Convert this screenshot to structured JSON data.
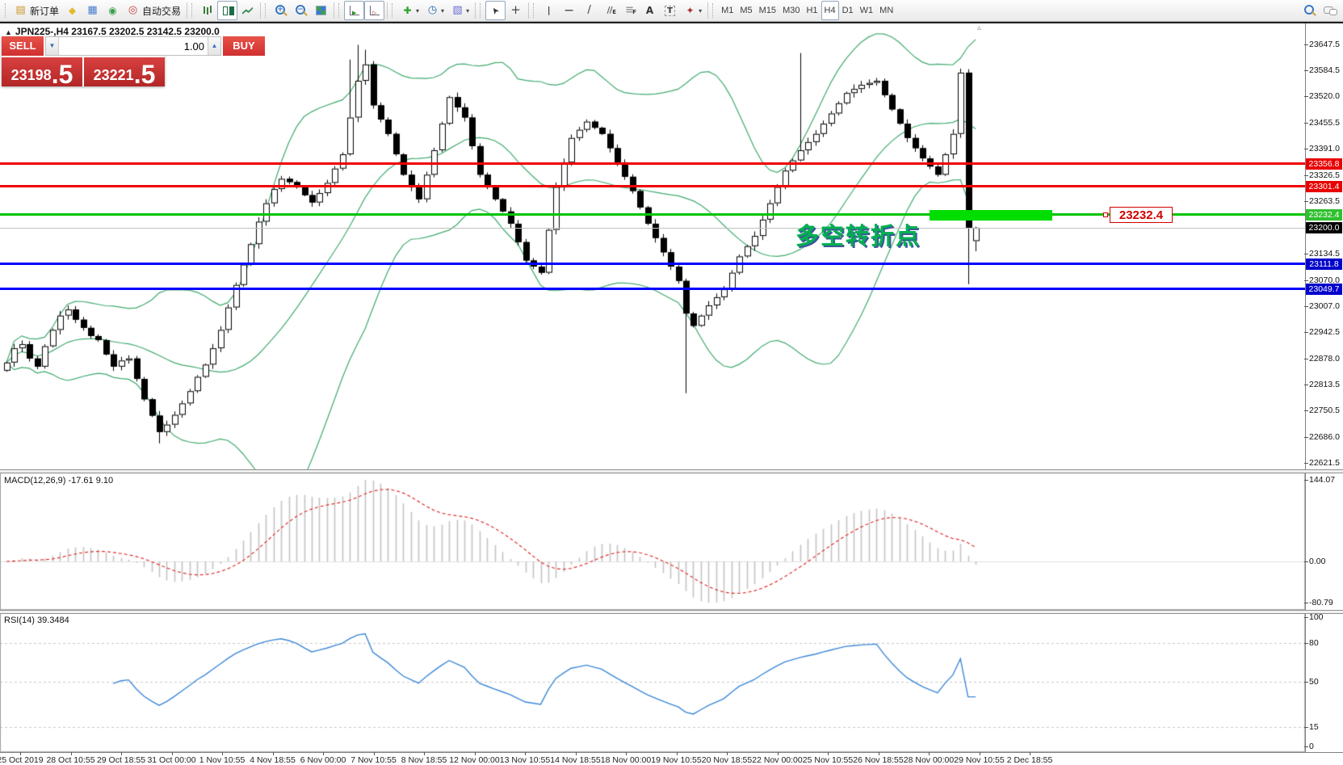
{
  "toolbar": {
    "groups": [
      {
        "items": [
          {
            "name": "new-order-button",
            "icon": "neworder",
            "label": "新订单"
          },
          {
            "name": "eraser-button",
            "icon": "eraser"
          },
          {
            "name": "charts-button",
            "icon": "charts"
          },
          {
            "name": "market-signal-button",
            "icon": "signal"
          },
          {
            "name": "autotrading-button",
            "icon": "autotrade",
            "label": "自动交易"
          }
        ]
      },
      {
        "items": [
          {
            "name": "bar-chart-button",
            "icon": "bars"
          },
          {
            "name": "candlestick-chart-button",
            "icon": "candles",
            "pressed": true
          },
          {
            "name": "line-chart-button",
            "icon": "line"
          }
        ]
      },
      {
        "items": [
          {
            "name": "zoom-in-button",
            "icon": "zoomin"
          },
          {
            "name": "zoom-out-button",
            "icon": "zoomout"
          },
          {
            "name": "tile-windows-button",
            "icon": "tile"
          }
        ]
      },
      {
        "items": [
          {
            "name": "auto-scroll-button",
            "icon": "autoscroll",
            "pressed": true
          },
          {
            "name": "chart-shift-button",
            "icon": "shift",
            "pressed": true
          }
        ]
      },
      {
        "items": [
          {
            "name": "indicators-button",
            "icon": "addindicator",
            "caret": true
          },
          {
            "name": "periods-button",
            "icon": "clock",
            "caret": true
          },
          {
            "name": "templates-button",
            "icon": "template",
            "caret": true
          }
        ]
      },
      {
        "items": [
          {
            "name": "cursor-button",
            "icon": "cursor",
            "pressed": true
          },
          {
            "name": "crosshair-button",
            "icon": "crosshair"
          }
        ]
      },
      {
        "items": [
          {
            "name": "vertical-line-button",
            "icon": "vline"
          },
          {
            "name": "horizontal-line-button",
            "icon": "hline"
          },
          {
            "name": "trendline-button",
            "icon": "trendline"
          },
          {
            "name": "equidistant-channel-button",
            "icon": "channel"
          },
          {
            "name": "fibonacci-button",
            "icon": "fibo"
          },
          {
            "name": "text-button",
            "icon": "textA"
          },
          {
            "name": "text-label-button",
            "icon": "textT"
          },
          {
            "name": "arrows-button",
            "icon": "arrows",
            "caret": true
          }
        ]
      },
      {
        "items": [
          {
            "name": "tf-m1-button",
            "label": "M1",
            "tf": true
          },
          {
            "name": "tf-m5-button",
            "label": "M5",
            "tf": true
          },
          {
            "name": "tf-m15-button",
            "label": "M15",
            "tf": true
          },
          {
            "name": "tf-m30-button",
            "label": "M30",
            "tf": true
          },
          {
            "name": "tf-h1-button",
            "label": "H1",
            "tf": true
          },
          {
            "name": "tf-h4-button",
            "label": "H4",
            "tf": true,
            "pressed": true
          },
          {
            "name": "tf-d1-button",
            "label": "D1",
            "tf": true
          },
          {
            "name": "tf-w1-button",
            "label": "W1",
            "tf": true
          },
          {
            "name": "tf-mn-button",
            "label": "MN",
            "tf": true
          }
        ]
      }
    ],
    "right": [
      {
        "name": "search-button",
        "icon": "search"
      },
      {
        "name": "chat-button",
        "icon": "chat"
      }
    ]
  },
  "header": {
    "collapse_glyph": "▲",
    "symbol_text": "JPN225-,H4  23167.5 23202.5 23142.5 23200.0"
  },
  "trade_panel": {
    "sell_label": "SELL",
    "buy_label": "BUY",
    "volume": "1.00",
    "spin_down_glyph": "▼",
    "spin_up_glyph": "▲",
    "sell_price": "23198",
    "sell_fraction": ".5",
    "buy_price": "23221",
    "buy_fraction": ".5"
  },
  "chart": {
    "annotation": {
      "text": "多空转折点",
      "color": "#00b050"
    },
    "price_label_box": {
      "text": "23232.4"
    },
    "shift_marker_glyph": "▵",
    "price_axis_ticks": [
      "23647.5",
      "23584.5",
      "23520.0",
      "23455.5",
      "23391.0",
      "23326.5",
      "23263.5",
      "23134.5",
      "23070.0",
      "23007.0",
      "22942.5",
      "22878.0",
      "22813.5",
      "22750.5",
      "22686.0",
      "22621.5"
    ],
    "badges": [
      {
        "text": "23356.8",
        "bg": "#e80000"
      },
      {
        "text": "23301.4",
        "bg": "#e80000"
      },
      {
        "text": "23232.4",
        "bg": "#2fc02f"
      },
      {
        "text": "23200.0",
        "bg": "#000000"
      },
      {
        "text": "23111.8",
        "bg": "#0000cc"
      },
      {
        "text": "23049.7",
        "bg": "#0000cc"
      }
    ],
    "hlines": [
      {
        "price": 23356.8,
        "color": "#f00000",
        "w": 3,
        "name": "resistance-line-23356-8"
      },
      {
        "price": 23301.4,
        "color": "#f00000",
        "w": 3,
        "name": "resistance-line-23301-4"
      },
      {
        "price": 23232.4,
        "color": "#00c400",
        "w": 3,
        "name": "pivot-line-23232-4"
      },
      {
        "price": 23200.0,
        "color": "#c0c0c0",
        "w": 1,
        "name": "current-bid-line"
      },
      {
        "price": 23111.8,
        "color": "#0000ff",
        "w": 3,
        "name": "support-line-23111-8"
      },
      {
        "price": 23049.7,
        "color": "#0000ff",
        "w": 3,
        "name": "support-line-23049-7"
      }
    ],
    "time_axis": [
      "25 Oct 2019",
      "28 Oct 10:55",
      "29 Oct 18:55",
      "31 Oct 00:00",
      "1 Nov 10:55",
      "4 Nov 18:55",
      "6 Nov 00:00",
      "7 Nov 10:55",
      "8 Nov 18:55",
      "12 Nov 00:00",
      "13 Nov 10:55",
      "14 Nov 18:55",
      "18 Nov 00:00",
      "19 Nov 10:55",
      "20 Nov 18:55",
      "22 Nov 00:00",
      "25 Nov 10:55",
      "26 Nov 18:55",
      "28 Nov 00:00",
      "29 Nov 10:55",
      "2 Dec 18:55"
    ]
  },
  "indicators": {
    "macd": {
      "label": "MACD(12,26,9) -17.61 9.10",
      "axis": [
        "144.07",
        "0.00",
        "-80.79"
      ],
      "axis_values": [
        144.07,
        0,
        -80.79
      ]
    },
    "rsi": {
      "label": "RSI(14) 39.3484",
      "axis": [
        "100",
        "80",
        "50",
        "15",
        "0"
      ],
      "axis_values": [
        100,
        80,
        50,
        15,
        0
      ],
      "levels": [
        80,
        50,
        15
      ]
    }
  },
  "chart_data": {
    "type": "candlestick",
    "symbol": "JPN225-",
    "timeframe": "H4",
    "current_bar": {
      "open": 23167.5,
      "high": 23202.5,
      "low": 23142.5,
      "close": 23200.0
    },
    "price_axis_range": [
      22621.5,
      23647.5
    ],
    "horizontal_levels": [
      23356.8,
      23301.4,
      23232.4,
      23200.0,
      23111.8,
      23049.7
    ],
    "highlight_zone_price": 23232.4,
    "closes": [
      22870,
      22905,
      22915,
      22880,
      22860,
      22910,
      22950,
      22985,
      23000,
      22975,
      22955,
      22935,
      22925,
      22890,
      22860,
      22875,
      22880,
      22830,
      22780,
      22740,
      22700,
      22718,
      22742,
      22770,
      22800,
      22835,
      22865,
      22905,
      22950,
      23005,
      23060,
      23110,
      23160,
      23215,
      23260,
      23295,
      23320,
      23312,
      23300,
      23280,
      23262,
      23285,
      23310,
      23345,
      23380,
      23470,
      23560,
      23600,
      23500,
      23465,
      23430,
      23380,
      23330,
      23300,
      23270,
      23330,
      23390,
      23455,
      23520,
      23495,
      23470,
      23400,
      23330,
      23300,
      23270,
      23240,
      23210,
      23165,
      23120,
      23105,
      23090,
      23195,
      23300,
      23360,
      23420,
      23440,
      23460,
      23445,
      23430,
      23395,
      23360,
      23325,
      23290,
      23250,
      23210,
      23175,
      23140,
      23105,
      23070,
      22990,
      22960,
      22985,
      23010,
      23030,
      23050,
      23090,
      23130,
      23155,
      23180,
      23220,
      23260,
      23300,
      23340,
      23365,
      23390,
      23410,
      23430,
      23455,
      23480,
      23505,
      23530,
      23540,
      23550,
      23555,
      23560,
      23525,
      23490,
      23455,
      23420,
      23395,
      23370,
      23350,
      23330,
      23380,
      23430,
      23580,
      23200,
      23200
    ],
    "first_open": 22850,
    "special_wicks": {
      "20": {
        "low": 22672
      },
      "45": {
        "high": 23612
      },
      "46": {
        "high": 23648
      },
      "47": {
        "high": 23636
      },
      "89": {
        "low": 22795
      },
      "104": {
        "high": 23628
      },
      "126": {
        "low": 23062
      }
    },
    "bollinger": {
      "period": 20,
      "deviation": 2
    },
    "macd": {
      "fast": 12,
      "slow": 26,
      "signal": 9,
      "current_values": [
        -17.61,
        9.1
      ],
      "y_range": [
        -80.79,
        144.07
      ]
    },
    "rsi": {
      "period": 14,
      "current_value": 39.3484,
      "levels": [
        80,
        50,
        15
      ],
      "y_range": [
        0,
        100
      ]
    }
  }
}
